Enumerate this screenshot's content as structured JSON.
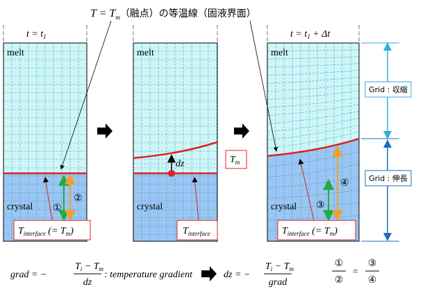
{
  "title": {
    "lhs": "T = T",
    "sub": "m",
    "rest": "（融点）の等温線（固液界面）"
  },
  "panels": [
    {
      "time": "t = t",
      "time_sub": "1",
      "melt": "melt",
      "crystal": "crystal"
    },
    {
      "melt": "melt",
      "crystal": "crystal"
    },
    {
      "time": "t = t",
      "time_sub": "1",
      "time_rest": " + Δt",
      "melt": "melt",
      "crystal": "crystal"
    }
  ],
  "interface_labels": [
    {
      "T": "T",
      "sub": "interface",
      "eq": " (= T",
      "eq_sub": "m",
      "close": ")"
    },
    {
      "T": "T",
      "sub": "interface"
    },
    {
      "T": "T",
      "sub": "interface",
      "eq": " (= T",
      "eq_sub": "m",
      "close": ")"
    }
  ],
  "tm_box": {
    "T": "T",
    "sub": "m"
  },
  "dz": "dz",
  "markers": [
    "①",
    "②",
    "③",
    "④"
  ],
  "grid_notes": [
    "Grid : 収縮",
    "Grid : 伸長"
  ],
  "formula1": {
    "lhs": "grad = −",
    "num": "T",
    "num_i": "i",
    "num_mid": " − T",
    "num_m": "m",
    "den": "dz",
    "desc": ": temperature gradient"
  },
  "formula2": {
    "lhs": "dz = −",
    "num": "T",
    "num_i": "i",
    "num_mid": " − T",
    "num_m": "m",
    "den": "grad"
  },
  "ratio": {
    "a": "①",
    "b": "②",
    "eq": "=",
    "c": "③",
    "d": "④"
  }
}
